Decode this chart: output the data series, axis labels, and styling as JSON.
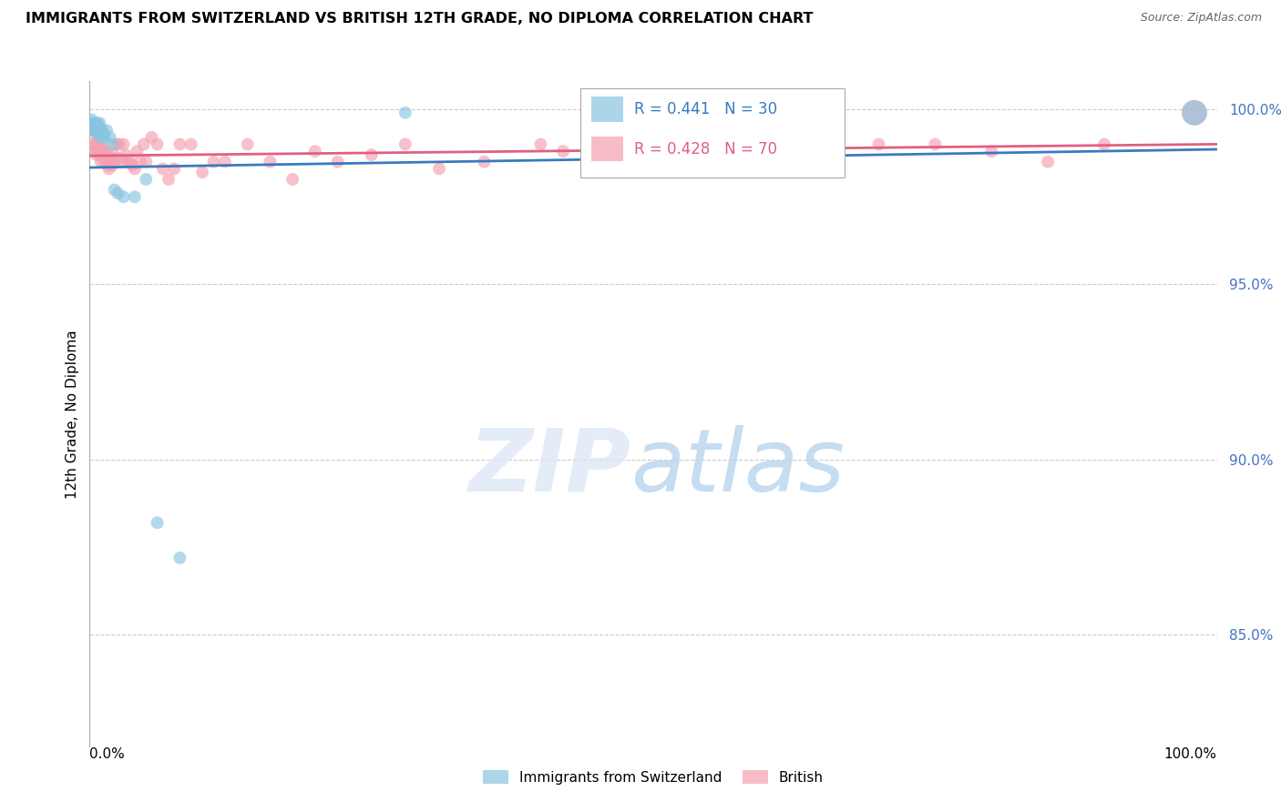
{
  "title": "IMMIGRANTS FROM SWITZERLAND VS BRITISH 12TH GRADE, NO DIPLOMA CORRELATION CHART",
  "source": "Source: ZipAtlas.com",
  "ylabel": "12th Grade, No Diploma",
  "legend_label1": "Immigrants from Switzerland",
  "legend_label2": "British",
  "r1": 0.441,
  "n1": 30,
  "r2": 0.428,
  "n2": 70,
  "color_swiss": "#89c4e1",
  "color_british": "#f4a0b0",
  "color_swiss_line": "#3a7abf",
  "color_british_line": "#e06080",
  "xlim": [
    0.0,
    1.0
  ],
  "ylim": [
    0.818,
    1.008
  ],
  "yticks": [
    0.85,
    0.9,
    0.95,
    1.0
  ],
  "ytick_labels": [
    "85.0%",
    "90.0%",
    "95.0%",
    "100.0%"
  ],
  "swiss_x": [
    0.002,
    0.003,
    0.003,
    0.004,
    0.005,
    0.006,
    0.006,
    0.007,
    0.007,
    0.008,
    0.008,
    0.009,
    0.009,
    0.01,
    0.01,
    0.011,
    0.012,
    0.013,
    0.015,
    0.018,
    0.02,
    0.022,
    0.025,
    0.03,
    0.04,
    0.05,
    0.06,
    0.08,
    0.28,
    0.98
  ],
  "swiss_y": [
    0.997,
    0.996,
    0.995,
    0.994,
    0.996,
    0.995,
    0.993,
    0.996,
    0.994,
    0.995,
    0.993,
    0.994,
    0.996,
    0.994,
    0.992,
    0.994,
    0.993,
    0.992,
    0.994,
    0.992,
    0.99,
    0.977,
    0.976,
    0.975,
    0.975,
    0.98,
    0.882,
    0.872,
    0.999,
    0.999
  ],
  "swiss_sizes": [
    100,
    100,
    100,
    100,
    100,
    100,
    100,
    100,
    100,
    100,
    100,
    100,
    100,
    100,
    100,
    100,
    100,
    100,
    100,
    100,
    100,
    100,
    100,
    100,
    100,
    100,
    100,
    100,
    100,
    400
  ],
  "british_x": [
    0.002,
    0.003,
    0.004,
    0.005,
    0.005,
    0.006,
    0.007,
    0.007,
    0.008,
    0.009,
    0.009,
    0.01,
    0.011,
    0.012,
    0.013,
    0.014,
    0.015,
    0.016,
    0.017,
    0.018,
    0.019,
    0.02,
    0.021,
    0.022,
    0.024,
    0.025,
    0.026,
    0.028,
    0.03,
    0.032,
    0.034,
    0.036,
    0.038,
    0.04,
    0.042,
    0.045,
    0.048,
    0.05,
    0.055,
    0.06,
    0.065,
    0.07,
    0.075,
    0.08,
    0.09,
    0.1,
    0.11,
    0.12,
    0.14,
    0.16,
    0.18,
    0.2,
    0.22,
    0.25,
    0.28,
    0.31,
    0.35,
    0.4,
    0.42,
    0.45,
    0.5,
    0.55,
    0.6,
    0.65,
    0.7,
    0.75,
    0.8,
    0.85,
    0.9,
    0.98
  ],
  "british_y": [
    0.99,
    0.994,
    0.994,
    0.99,
    0.988,
    0.987,
    0.991,
    0.989,
    0.99,
    0.987,
    0.989,
    0.985,
    0.988,
    0.989,
    0.985,
    0.987,
    0.988,
    0.984,
    0.983,
    0.985,
    0.986,
    0.984,
    0.987,
    0.985,
    0.99,
    0.986,
    0.99,
    0.985,
    0.99,
    0.987,
    0.985,
    0.985,
    0.984,
    0.983,
    0.988,
    0.985,
    0.99,
    0.985,
    0.992,
    0.99,
    0.983,
    0.98,
    0.983,
    0.99,
    0.99,
    0.982,
    0.985,
    0.985,
    0.99,
    0.985,
    0.98,
    0.988,
    0.985,
    0.987,
    0.99,
    0.983,
    0.985,
    0.99,
    0.988,
    0.985,
    0.99,
    0.987,
    0.99,
    0.988,
    0.99,
    0.99,
    0.988,
    0.985,
    0.99,
    0.999
  ],
  "british_sizes": [
    100,
    100,
    100,
    100,
    100,
    100,
    100,
    100,
    100,
    100,
    100,
    100,
    100,
    100,
    100,
    100,
    100,
    100,
    100,
    100,
    100,
    100,
    100,
    100,
    100,
    100,
    100,
    100,
    100,
    100,
    100,
    100,
    100,
    100,
    100,
    100,
    100,
    100,
    100,
    100,
    100,
    100,
    100,
    100,
    100,
    100,
    100,
    100,
    100,
    100,
    100,
    100,
    100,
    100,
    100,
    100,
    100,
    100,
    100,
    100,
    100,
    100,
    100,
    100,
    100,
    100,
    100,
    100,
    100,
    400
  ]
}
